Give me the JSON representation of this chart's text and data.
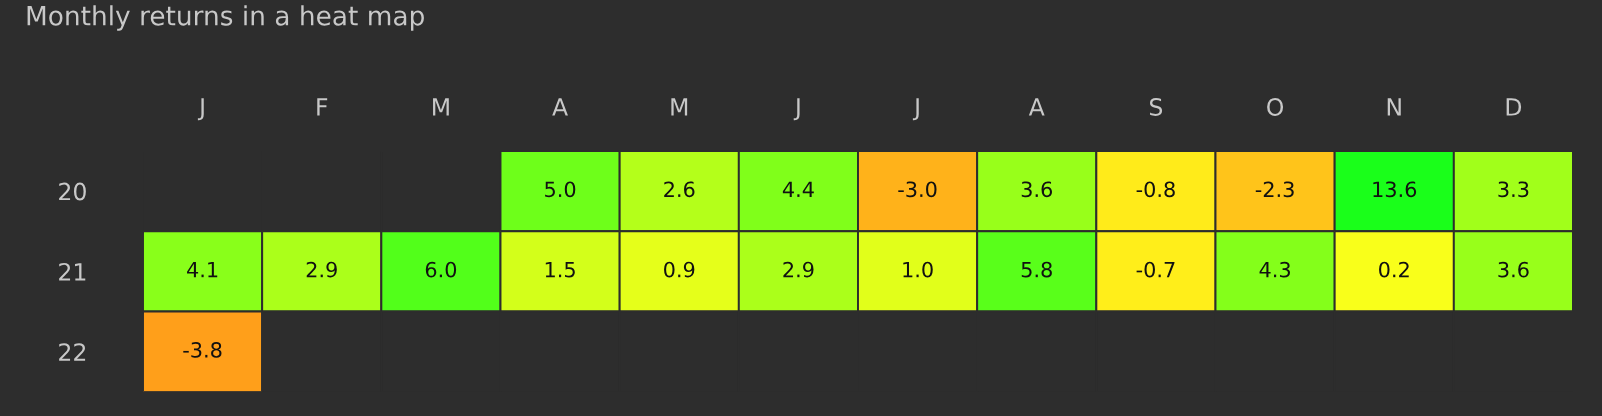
{
  "chart_data": {
    "type": "heatmap",
    "title": "Monthly returns in a heat map",
    "categories": [
      "J",
      "F",
      "M",
      "A",
      "M",
      "J",
      "J",
      "A",
      "S",
      "O",
      "N",
      "D"
    ],
    "y_categories": [
      "20",
      "21",
      "22"
    ],
    "cells": [
      [
        null,
        null,
        null,
        5.0,
        2.6,
        4.4,
        -3.0,
        3.6,
        -0.8,
        -2.3,
        13.6,
        3.3
      ],
      [
        4.1,
        2.9,
        6.0,
        1.5,
        0.9,
        2.9,
        1.0,
        5.8,
        -0.7,
        4.3,
        0.2,
        3.6
      ],
      [
        -3.8,
        null,
        null,
        null,
        null,
        null,
        null,
        null,
        null,
        null,
        null,
        null
      ]
    ],
    "cell_labels": [
      [
        null,
        null,
        null,
        "5.0",
        "2.6",
        "4.4",
        "-3.0",
        "3.6",
        "-0.8",
        "-2.3",
        "13.6",
        "3.3"
      ],
      [
        "4.1",
        "2.9",
        "6.0",
        "1.5",
        "0.9",
        "2.9",
        "1.0",
        "5.8",
        "-0.7",
        "4.3",
        "0.2",
        "3.6"
      ],
      [
        "-3.8",
        null,
        null,
        null,
        null,
        null,
        null,
        null,
        null,
        null,
        null,
        null
      ]
    ],
    "grid": false
  }
}
